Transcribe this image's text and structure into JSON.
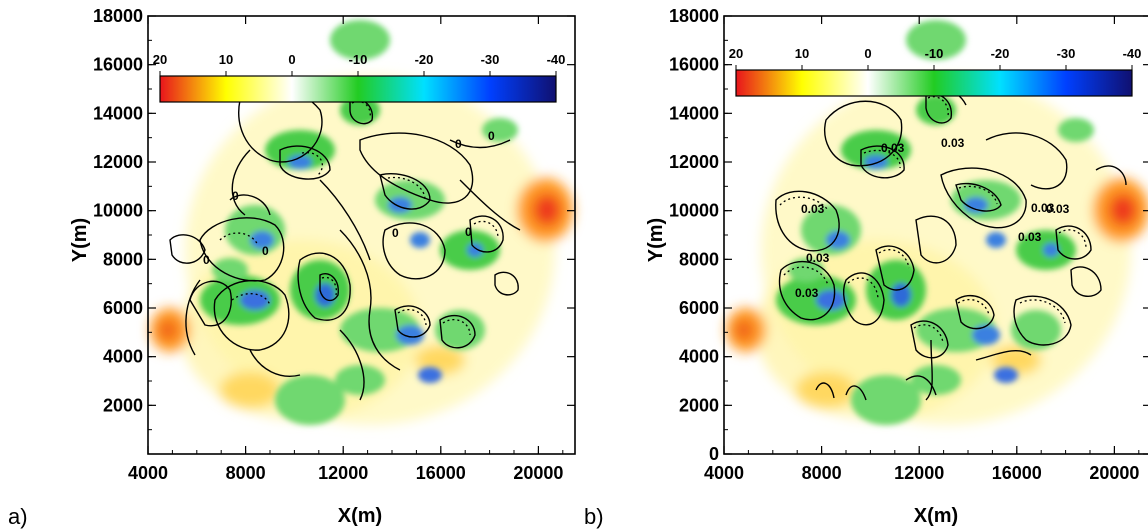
{
  "chart_data": [
    {
      "type": "heatmap",
      "panel_label": "a)",
      "xlabel": "X(m)",
      "ylabel": "Y(m)",
      "xlim": [
        4000,
        21500
      ],
      "ylim": [
        0,
        18000
      ],
      "x_ticks": [
        4000,
        8000,
        12000,
        16000,
        20000
      ],
      "y_ticks": [
        2000,
        4000,
        6000,
        8000,
        10000,
        12000,
        14000,
        16000,
        18000
      ],
      "colorbar": {
        "ticks": [
          20,
          10,
          0,
          -10,
          -20,
          -30,
          -40
        ],
        "range": [
          20,
          -40
        ],
        "colors": [
          "#e8141c",
          "#ffff00",
          "#ffffff",
          "#22cc22",
          "#00e0ff",
          "#0040ff",
          "#101070"
        ]
      },
      "contour_labels": [
        "0",
        "0",
        "0",
        "0",
        "0",
        "0",
        "0"
      ],
      "grid": false
    },
    {
      "type": "heatmap",
      "panel_label": "b)",
      "xlabel": "X(m)",
      "ylabel": "Y(m)",
      "xlim": [
        4000,
        21500
      ],
      "ylim": [
        0,
        18000
      ],
      "x_ticks": [
        4000,
        8000,
        12000,
        16000,
        20000
      ],
      "y_ticks": [
        0,
        2000,
        4000,
        6000,
        8000,
        10000,
        12000,
        14000,
        16000,
        18000
      ],
      "colorbar": {
        "ticks": [
          20,
          10,
          0,
          -10,
          -20,
          -30,
          -40
        ],
        "range": [
          20,
          -40
        ],
        "colors": [
          "#e8141c",
          "#ffff00",
          "#ffffff",
          "#22cc22",
          "#00e0ff",
          "#0040ff",
          "#101070"
        ]
      },
      "contour_labels": [
        "0.03",
        "0.03",
        "0.03",
        "0.03",
        "0.03",
        "0.03",
        "0.03",
        "0.03"
      ],
      "grid": false
    }
  ]
}
